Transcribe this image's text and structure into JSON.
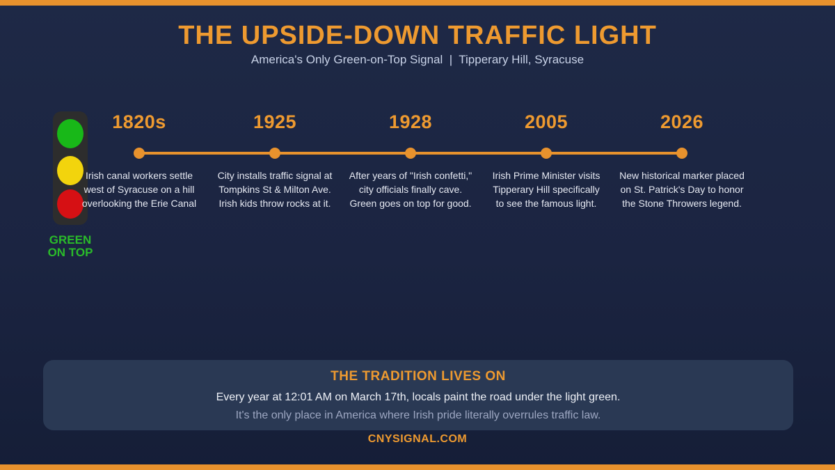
{
  "colors": {
    "accent_orange": "#e8922d",
    "title_orange": "#ee9a30",
    "background_navy": "#1b2441",
    "card_navy": "#2a3954",
    "light_green": "#18b818",
    "light_yellow": "#f2d40d",
    "light_red": "#d61014",
    "caption_green": "#2abb2a",
    "body_text": "#e6e9f2",
    "muted_text": "#9da7c2",
    "subtitle_text": "#c9d3e8"
  },
  "header": {
    "title": "THE UPSIDE-DOWN TRAFFIC LIGHT",
    "subtitle": "America's Only Green-on-Top Signal  |  Tipperary Hill, Syracuse"
  },
  "traffic_light": {
    "lights_top_to_bottom": [
      "green",
      "yellow",
      "red"
    ],
    "caption": "GREEN\nON TOP"
  },
  "timeline": {
    "items": [
      {
        "year": "1820s",
        "description": "Irish canal workers settle\nwest of Syracuse on a hill\noverlooking the Erie Canal"
      },
      {
        "year": "1925",
        "description": "City installs traffic signal at\nTompkins St & Milton Ave.\nIrish kids throw rocks at it."
      },
      {
        "year": "1928",
        "description": "After years of \"Irish confetti,\"\ncity officials finally cave.\nGreen goes on top for good."
      },
      {
        "year": "2005",
        "description": "Irish Prime Minister visits\nTipperary Hill specifically\nto see the famous light."
      },
      {
        "year": "2026",
        "description": "New historical marker placed\non St. Patrick's Day to honor\nthe Stone Throwers legend."
      }
    ]
  },
  "tradition_card": {
    "title": "THE TRADITION LIVES ON",
    "line1": "Every year at 12:01 AM on March 17th, locals paint the road under the light green.",
    "line2": "It's the only place in America where Irish pride literally overrules traffic law."
  },
  "footer": {
    "website": "CNYSIGNAL.COM"
  }
}
